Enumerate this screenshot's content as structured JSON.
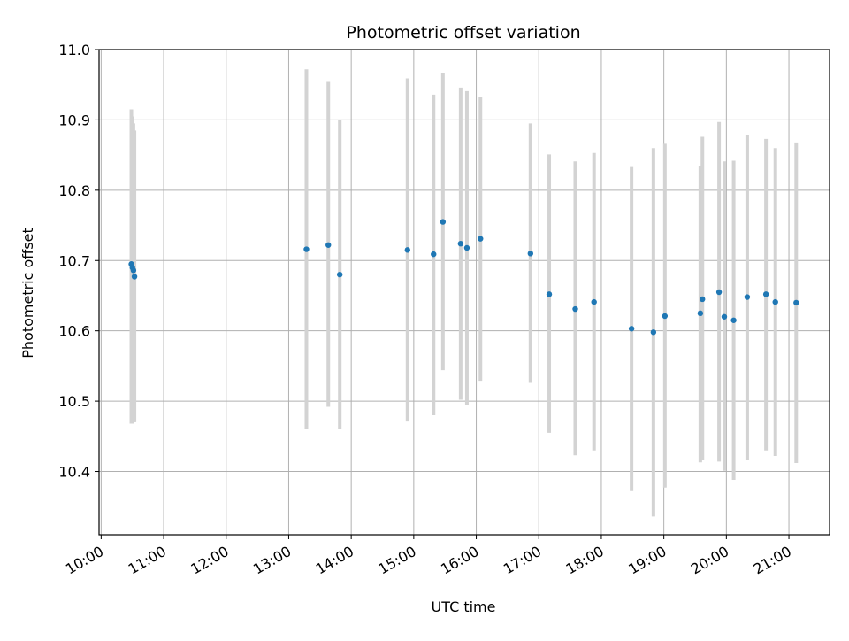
{
  "chart_data": {
    "type": "scatter",
    "title": "Photometric offset variation",
    "xlabel": "UTC time",
    "ylabel": "Photometric offset",
    "x_ticks": [
      "10:00",
      "11:00",
      "12:00",
      "13:00",
      "14:00",
      "15:00",
      "16:00",
      "17:00",
      "18:00",
      "19:00",
      "20:00",
      "21:00"
    ],
    "y_ticks": [
      "10.4",
      "10.5",
      "10.6",
      "10.7",
      "10.8",
      "10.9",
      "11.0"
    ],
    "ylim": [
      10.31,
      11.0
    ],
    "xlim": [
      "09:58",
      "21:39"
    ],
    "grid": true,
    "colors": {
      "point": "#1f77b4",
      "errorbar": "#d3d3d3",
      "grid": "#b0b0b0"
    },
    "series": [
      {
        "points": [
          {
            "x": "10:29",
            "y": 10.695,
            "err_low": 10.468,
            "err_high": 10.915
          },
          {
            "x": "10:30",
            "y": 10.69,
            "err_low": 10.468,
            "err_high": 10.905
          },
          {
            "x": "10:31",
            "y": 10.686,
            "err_low": 10.47,
            "err_high": 10.895
          },
          {
            "x": "10:32",
            "y": 10.677,
            "err_low": 10.47,
            "err_high": 10.885
          },
          {
            "x": "13:17",
            "y": 10.716,
            "err_low": 10.461,
            "err_high": 10.972
          },
          {
            "x": "13:38",
            "y": 10.722,
            "err_low": 10.492,
            "err_high": 10.954
          },
          {
            "x": "13:49",
            "y": 10.68,
            "err_low": 10.46,
            "err_high": 10.9
          },
          {
            "x": "14:54",
            "y": 10.715,
            "err_low": 10.471,
            "err_high": 10.959
          },
          {
            "x": "15:19",
            "y": 10.709,
            "err_low": 10.48,
            "err_high": 10.936
          },
          {
            "x": "15:28",
            "y": 10.755,
            "err_low": 10.544,
            "err_high": 10.967
          },
          {
            "x": "15:45",
            "y": 10.724,
            "err_low": 10.502,
            "err_high": 10.946
          },
          {
            "x": "15:51",
            "y": 10.718,
            "err_low": 10.494,
            "err_high": 10.941
          },
          {
            "x": "16:04",
            "y": 10.731,
            "err_low": 10.529,
            "err_high": 10.933
          },
          {
            "x": "16:52",
            "y": 10.71,
            "err_low": 10.526,
            "err_high": 10.895
          },
          {
            "x": "17:10",
            "y": 10.652,
            "err_low": 10.455,
            "err_high": 10.851
          },
          {
            "x": "17:35",
            "y": 10.631,
            "err_low": 10.423,
            "err_high": 10.841
          },
          {
            "x": "17:53",
            "y": 10.641,
            "err_low": 10.43,
            "err_high": 10.853
          },
          {
            "x": "18:29",
            "y": 10.603,
            "err_low": 10.372,
            "err_high": 10.833
          },
          {
            "x": "18:50",
            "y": 10.598,
            "err_low": 10.336,
            "err_high": 10.86
          },
          {
            "x": "19:01",
            "y": 10.621,
            "err_low": 10.377,
            "err_high": 10.866
          },
          {
            "x": "19:35",
            "y": 10.625,
            "err_low": 10.413,
            "err_high": 10.835
          },
          {
            "x": "19:37",
            "y": 10.645,
            "err_low": 10.416,
            "err_high": 10.876
          },
          {
            "x": "19:53",
            "y": 10.655,
            "err_low": 10.414,
            "err_high": 10.897
          },
          {
            "x": "19:58",
            "y": 10.62,
            "err_low": 10.401,
            "err_high": 10.841
          },
          {
            "x": "20:07",
            "y": 10.615,
            "err_low": 10.388,
            "err_high": 10.842
          },
          {
            "x": "20:20",
            "y": 10.648,
            "err_low": 10.416,
            "err_high": 10.879
          },
          {
            "x": "20:38",
            "y": 10.652,
            "err_low": 10.43,
            "err_high": 10.873
          },
          {
            "x": "20:47",
            "y": 10.641,
            "err_low": 10.422,
            "err_high": 10.86
          },
          {
            "x": "21:07",
            "y": 10.64,
            "err_low": 10.412,
            "err_high": 10.868
          }
        ]
      }
    ]
  }
}
